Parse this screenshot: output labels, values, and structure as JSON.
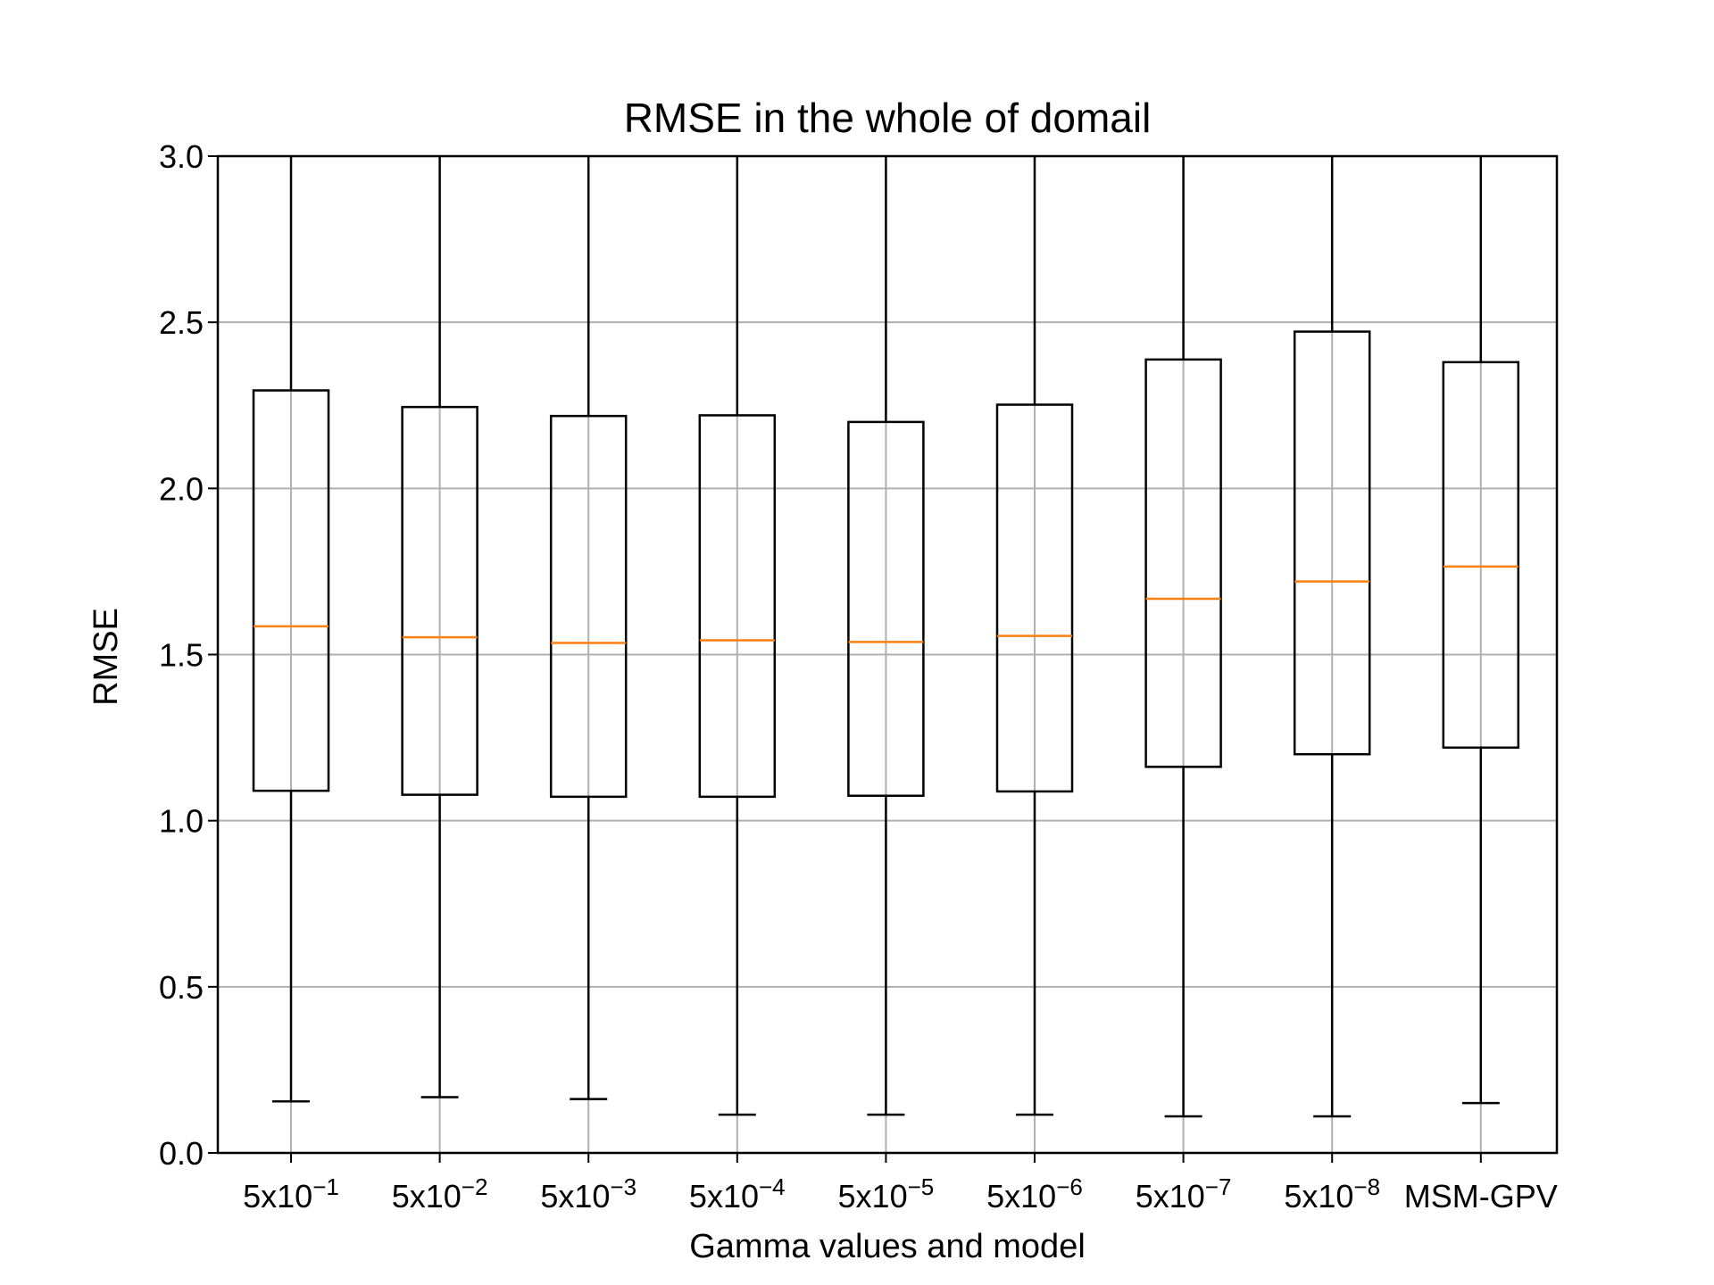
{
  "chart_data": {
    "type": "box",
    "title": "RMSE in the whole of domail",
    "xlabel": "Gamma values and model",
    "ylabel": "RMSE",
    "ylim": [
      0,
      3.0
    ],
    "yticks": [
      "0.0",
      "0.5",
      "1.0",
      "1.5",
      "2.0",
      "2.5",
      "3.0"
    ],
    "grid": true,
    "categories": [
      {
        "base": "5x10",
        "exp": "−1"
      },
      {
        "base": "5x10",
        "exp": "−2"
      },
      {
        "base": "5x10",
        "exp": "−3"
      },
      {
        "base": "5x10",
        "exp": "−4"
      },
      {
        "base": "5x10",
        "exp": "−5"
      },
      {
        "base": "5x10",
        "exp": "−6"
      },
      {
        "base": "5x10",
        "exp": "−7"
      },
      {
        "base": "5x10",
        "exp": "−8"
      },
      {
        "base": "MSM-GPV",
        "exp": ""
      }
    ],
    "boxes": [
      {
        "whisker_low": 0.155,
        "q1": 1.09,
        "median": 1.585,
        "q3": 2.295,
        "whisker_high": 3.0
      },
      {
        "whisker_low": 0.168,
        "q1": 1.078,
        "median": 1.552,
        "q3": 2.245,
        "whisker_high": 3.0
      },
      {
        "whisker_low": 0.162,
        "q1": 1.072,
        "median": 1.535,
        "q3": 2.218,
        "whisker_high": 3.0
      },
      {
        "whisker_low": 0.115,
        "q1": 1.072,
        "median": 1.543,
        "q3": 2.22,
        "whisker_high": 3.0
      },
      {
        "whisker_low": 0.115,
        "q1": 1.075,
        "median": 1.538,
        "q3": 2.2,
        "whisker_high": 3.0
      },
      {
        "whisker_low": 0.115,
        "q1": 1.088,
        "median": 1.556,
        "q3": 2.252,
        "whisker_high": 3.0
      },
      {
        "whisker_low": 0.11,
        "q1": 1.162,
        "median": 1.668,
        "q3": 2.388,
        "whisker_high": 3.0
      },
      {
        "whisker_low": 0.11,
        "q1": 1.2,
        "median": 1.72,
        "q3": 2.472,
        "whisker_high": 3.0
      },
      {
        "whisker_low": 0.15,
        "q1": 1.22,
        "median": 1.765,
        "q3": 2.38,
        "whisker_high": 3.0
      }
    ],
    "colors": {
      "box": "#000000",
      "median": "#ff7f0e",
      "grid": "#b0b0b0"
    }
  }
}
